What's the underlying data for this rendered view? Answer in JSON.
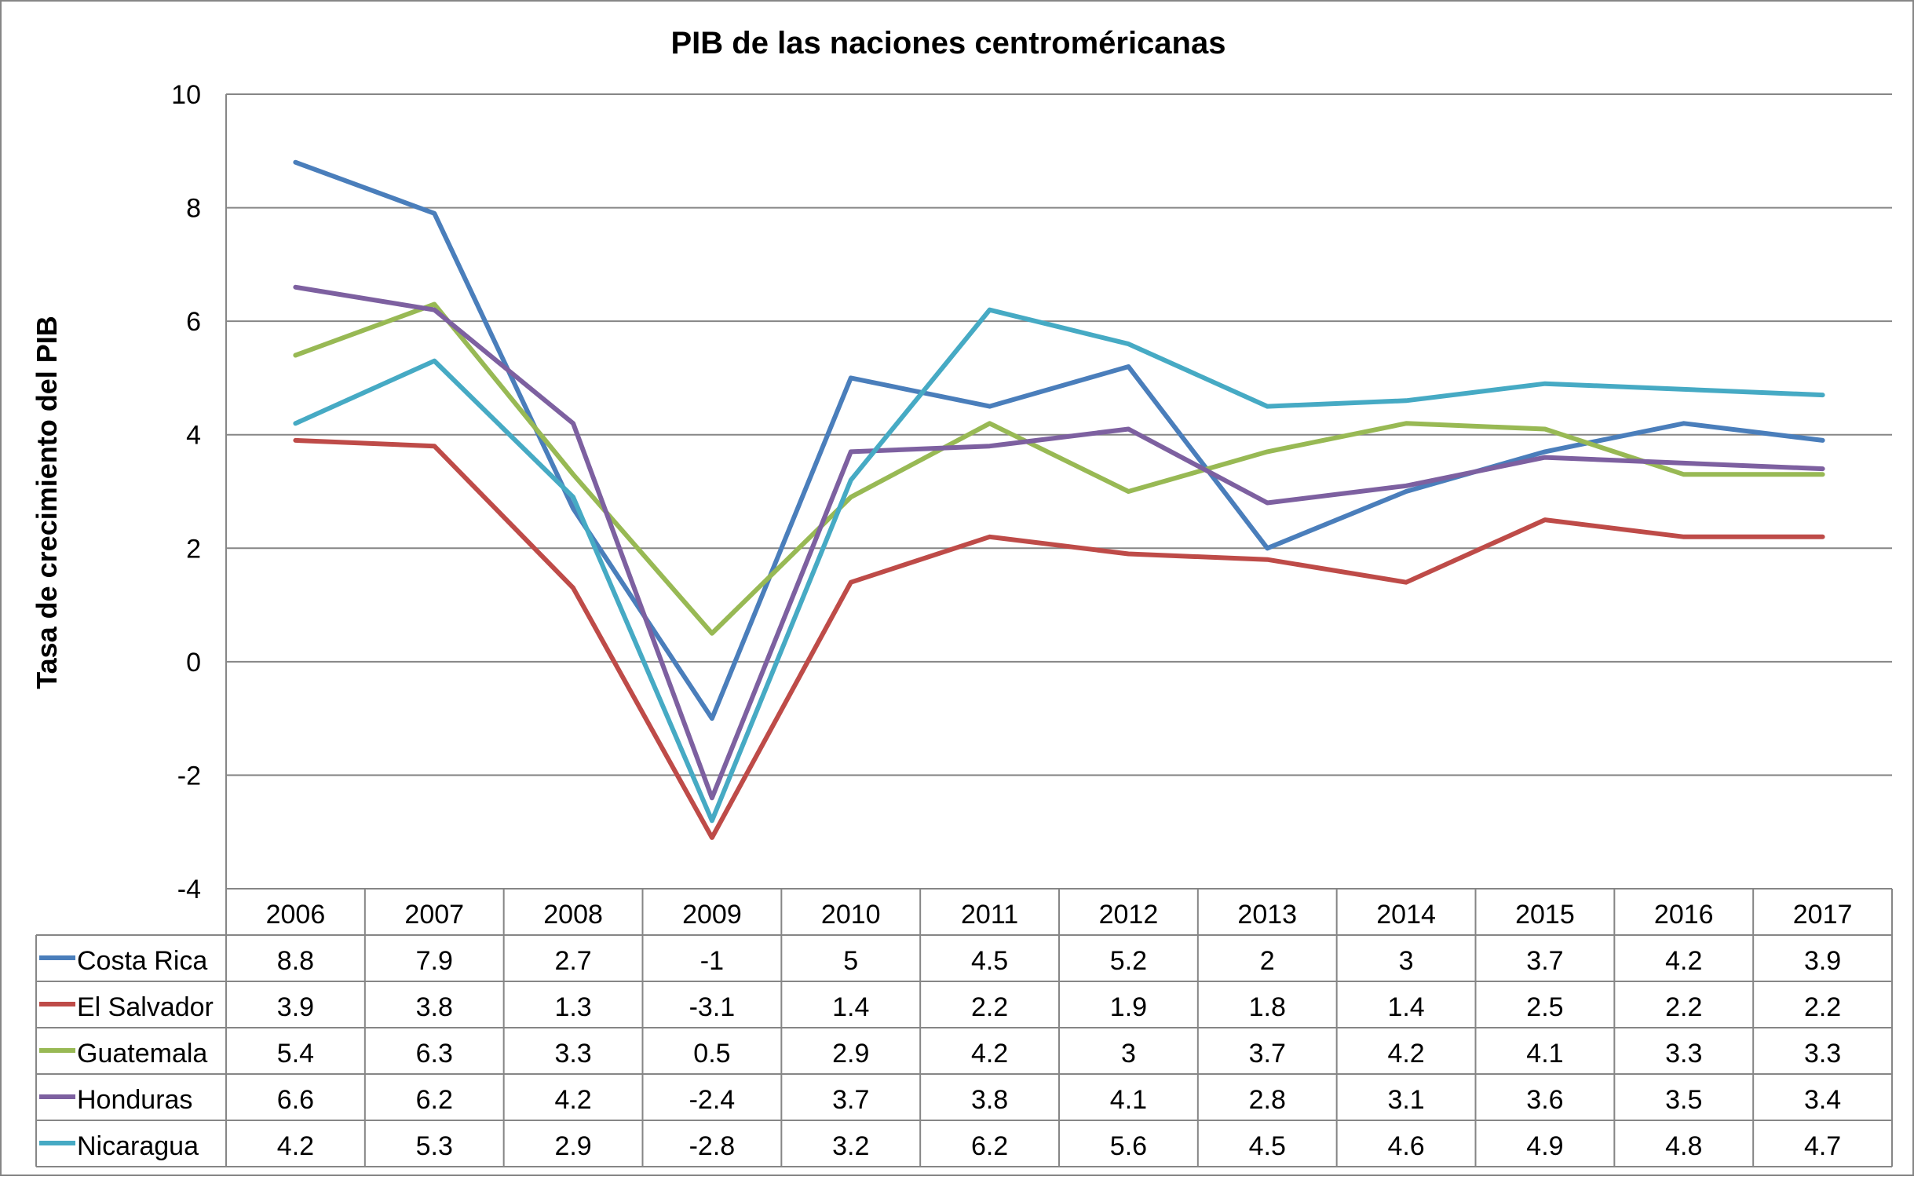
{
  "chart_data": {
    "type": "line",
    "title": "PIB de las naciones centroméricanas",
    "xlabel": "",
    "ylabel": "Tasa de crecimiento del PIB",
    "ylim": [
      -4,
      10
    ],
    "yticks": [
      "10",
      "8",
      "6",
      "4",
      "2",
      "0",
      "-2",
      "-4"
    ],
    "grid": true,
    "legend": "data-table-below",
    "categories": [
      "2006",
      "2007",
      "2008",
      "2009",
      "2010",
      "2011",
      "2012",
      "2013",
      "2014",
      "2015",
      "2016",
      "2017"
    ],
    "series": [
      {
        "name": "Costa Rica",
        "color": "#4a7ebb",
        "values": [
          8.8,
          7.9,
          2.7,
          -1,
          5,
          4.5,
          5.2,
          2,
          3,
          3.7,
          4.2,
          3.9
        ],
        "labels": [
          "8.8",
          "7.9",
          "2.7",
          "-1",
          "5",
          "4.5",
          "5.2",
          "2",
          "3",
          "3.7",
          "4.2",
          "3.9"
        ]
      },
      {
        "name": "El Salvador",
        "color": "#be4b48",
        "values": [
          3.9,
          3.8,
          1.3,
          -3.1,
          1.4,
          2.2,
          1.9,
          1.8,
          1.4,
          2.5,
          2.2,
          2.2
        ],
        "labels": [
          "3.9",
          "3.8",
          "1.3",
          "-3.1",
          "1.4",
          "2.2",
          "1.9",
          "1.8",
          "1.4",
          "2.5",
          "2.2",
          "2.2"
        ]
      },
      {
        "name": "Guatemala",
        "color": "#98b954",
        "values": [
          5.4,
          6.3,
          3.3,
          0.5,
          2.9,
          4.2,
          3,
          3.7,
          4.2,
          4.1,
          3.3,
          3.3
        ],
        "labels": [
          "5.4",
          "6.3",
          "3.3",
          "0.5",
          "2.9",
          "4.2",
          "3",
          "3.7",
          "4.2",
          "4.1",
          "3.3",
          "3.3"
        ]
      },
      {
        "name": "Honduras",
        "color": "#7d60a0",
        "values": [
          6.6,
          6.2,
          4.2,
          -2.4,
          3.7,
          3.8,
          4.1,
          2.8,
          3.1,
          3.6,
          3.5,
          3.4
        ],
        "labels": [
          "6.6",
          "6.2",
          "4.2",
          "-2.4",
          "3.7",
          "3.8",
          "4.1",
          "2.8",
          "3.1",
          "3.6",
          "3.5",
          "3.4"
        ]
      },
      {
        "name": "Nicaragua",
        "color": "#46aac4",
        "values": [
          4.2,
          5.3,
          2.9,
          -2.8,
          3.2,
          6.2,
          5.6,
          4.5,
          4.6,
          4.9,
          4.8,
          4.7
        ],
        "labels": [
          "4.2",
          "5.3",
          "2.9",
          "-2.8",
          "3.2",
          "6.2",
          "5.6",
          "4.5",
          "4.6",
          "4.9",
          "4.8",
          "4.7"
        ]
      }
    ]
  }
}
